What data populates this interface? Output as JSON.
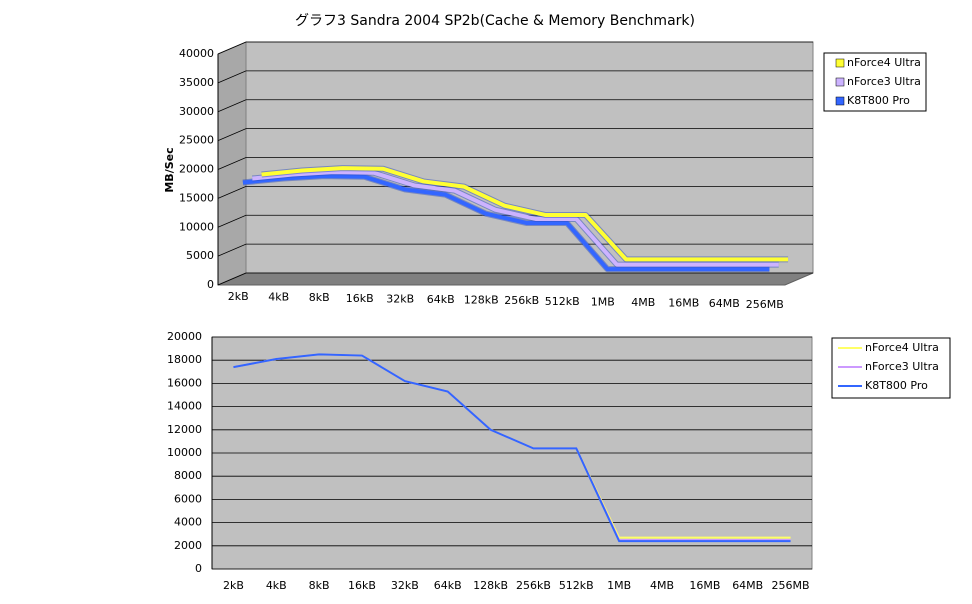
{
  "chart_data": [
    {
      "type": "line3d",
      "title": "グラフ3  Sandra 2004 SP2b(Cache & Memory Benchmark)",
      "y_label": "MB/Sec",
      "categories": [
        "2kB",
        "4kB",
        "8kB",
        "16kB",
        "32kB",
        "64kB",
        "128kB",
        "256kB",
        "512kB",
        "1MB",
        "4MB",
        "16MB",
        "64MB",
        "256MB"
      ],
      "ylim": [
        0,
        40000
      ],
      "yticks": [
        0,
        5000,
        10000,
        15000,
        20000,
        25000,
        30000,
        35000,
        40000
      ],
      "grid": true,
      "series": [
        {
          "name": "nForce4 Ultra",
          "color": "#ffff33",
          "values": [
            17400,
            18100,
            18500,
            18400,
            16200,
            15300,
            12000,
            10400,
            10400,
            2700,
            2700,
            2700,
            2700,
            2700
          ]
        },
        {
          "name": "nForce3 Ultra",
          "color": "#ccb3ff",
          "values": [
            17400,
            18100,
            18500,
            18400,
            16200,
            15300,
            12000,
            10400,
            10400,
            2500,
            2500,
            2500,
            2500,
            2500
          ]
        },
        {
          "name": "K8T800 Pro",
          "color": "#3366ff",
          "values": [
            17400,
            18100,
            18500,
            18400,
            16200,
            15300,
            12000,
            10400,
            10400,
            2400,
            2400,
            2400,
            2400,
            2400
          ]
        }
      ]
    },
    {
      "type": "line",
      "categories": [
        "2kB",
        "4kB",
        "8kB",
        "16kB",
        "32kB",
        "64kB",
        "128kB",
        "256kB",
        "512kB",
        "1MB",
        "4MB",
        "16MB",
        "64MB",
        "256MB"
      ],
      "ylim": [
        0,
        20000
      ],
      "yticks": [
        0,
        2000,
        4000,
        6000,
        8000,
        10000,
        12000,
        14000,
        16000,
        18000,
        20000
      ],
      "grid": true,
      "series": [
        {
          "name": "nForce4 Ultra",
          "color": "#ffff66",
          "values": [
            17400,
            18100,
            18500,
            18400,
            16200,
            15300,
            12000,
            10400,
            10400,
            2700,
            2700,
            2700,
            2700,
            2700
          ]
        },
        {
          "name": "nForce3 Ultra",
          "color": "#cc99ff",
          "values": [
            17400,
            18100,
            18500,
            18400,
            16200,
            15300,
            12000,
            10400,
            10400,
            2500,
            2500,
            2500,
            2500,
            2500
          ]
        },
        {
          "name": "K8T800 Pro",
          "color": "#3366ff",
          "values": [
            17400,
            18100,
            18500,
            18400,
            16200,
            15300,
            12000,
            10400,
            10400,
            2400,
            2400,
            2400,
            2400,
            2400
          ]
        }
      ]
    }
  ]
}
